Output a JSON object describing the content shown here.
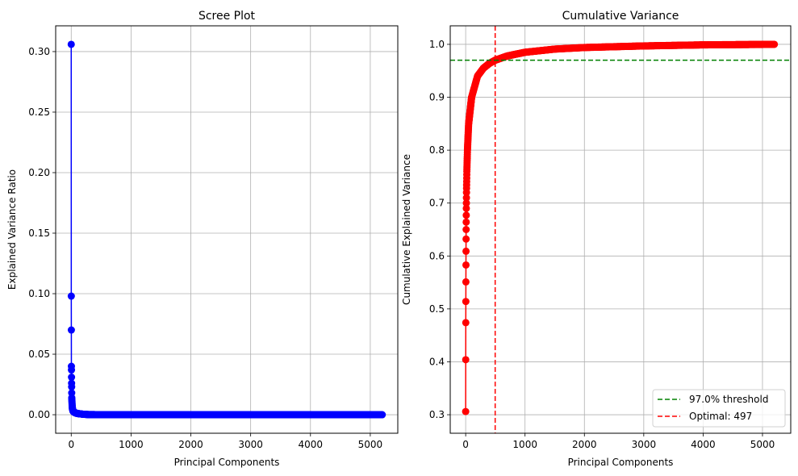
{
  "chart_data": [
    {
      "type": "line",
      "title": "Scree Plot",
      "xlabel": "Principal Components",
      "ylabel": "Explained Variance Ratio",
      "xlim": [
        -260,
        5460
      ],
      "ylim": [
        -0.0153,
        0.3213
      ],
      "xticks": [
        0,
        1000,
        2000,
        3000,
        4000,
        5000
      ],
      "yticks": [
        0.0,
        0.05,
        0.1,
        0.15,
        0.2,
        0.25,
        0.3
      ],
      "ytick_decimals": 2,
      "grid": true,
      "color": "#0000ff",
      "marker": "circle",
      "x": [
        0,
        1,
        2,
        3,
        4,
        5,
        6,
        7,
        8,
        9,
        10,
        15,
        20,
        30,
        50,
        100,
        200,
        300,
        500,
        1000,
        2000,
        3000,
        4000,
        5200
      ],
      "y": [
        0.306,
        0.098,
        0.07,
        0.04,
        0.037,
        0.031,
        0.026,
        0.023,
        0.018,
        0.014,
        0.013,
        0.008,
        0.005,
        0.003,
        0.002,
        0.001,
        0.0004,
        0.0001,
        4e-05,
        1e-05,
        3e-06,
        2e-06,
        1e-06,
        0.0
      ]
    },
    {
      "type": "line",
      "title": "Cumulative Variance",
      "xlabel": "Principal Components",
      "ylabel": "Cumulative Explained Variance",
      "xlim": [
        -260,
        5476
      ],
      "ylim": [
        0.265,
        1.035
      ],
      "xticks": [
        0,
        1000,
        2000,
        3000,
        4000,
        5000
      ],
      "yticks": [
        0.3,
        0.4,
        0.5,
        0.6,
        0.7,
        0.8,
        0.9,
        1.0
      ],
      "ytick_decimals": 1,
      "grid": true,
      "color": "#ff0000",
      "marker": "circle",
      "x": [
        0,
        1,
        2,
        3,
        4,
        5,
        6,
        7,
        8,
        9,
        10,
        11,
        12,
        13,
        14,
        15,
        20,
        30,
        50,
        100,
        200,
        300,
        400,
        497,
        700,
        1000,
        1500,
        2000,
        3000,
        4000,
        5200
      ],
      "y": [
        0.306,
        0.404,
        0.474,
        0.514,
        0.551,
        0.583,
        0.609,
        0.632,
        0.65,
        0.664,
        0.677,
        0.69,
        0.7,
        0.71,
        0.72,
        0.728,
        0.76,
        0.8,
        0.85,
        0.9,
        0.94,
        0.955,
        0.964,
        0.97,
        0.978,
        0.985,
        0.991,
        0.994,
        0.997,
        0.999,
        1.0
      ],
      "threshold": {
        "value": 0.97,
        "color": "#008000",
        "label": "97.0% threshold"
      },
      "optimal": {
        "value": 497,
        "color": "#ff0000",
        "label": "Optimal: 497"
      },
      "legend": "bottom-right"
    }
  ]
}
